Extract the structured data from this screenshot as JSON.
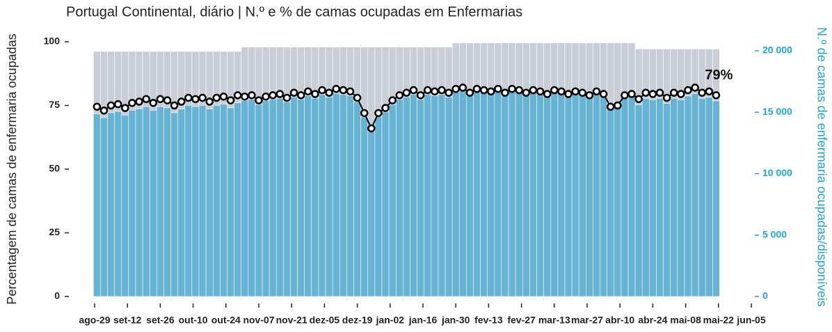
{
  "chart_data": {
    "type": "combo",
    "title": "Portugal Continental, diário | N.º e % de camas ocupadas em Enfermarias",
    "ylabel": "Percentagem de camas de enfermaria ocupadas",
    "y2label": "N.º de camas de enfermaria ocupadas/disponíveis",
    "annotation": "79%",
    "x": [
      1,
      4,
      7,
      10,
      13,
      16,
      19,
      22,
      25,
      28,
      31,
      34,
      37,
      40,
      43,
      46,
      49,
      52,
      55,
      58,
      61,
      64,
      67,
      70,
      73,
      76,
      79,
      82,
      85,
      88,
      91,
      94,
      97,
      100,
      103,
      106,
      109,
      112,
      115,
      118,
      121,
      124,
      127,
      130,
      133,
      136,
      139,
      142,
      145,
      148,
      151,
      154,
      157,
      160,
      163,
      166,
      169,
      172,
      175,
      178,
      181,
      184,
      187,
      190,
      193,
      196,
      199,
      202,
      205,
      208,
      211,
      214,
      217,
      220,
      223,
      226,
      229,
      232,
      235,
      238,
      241,
      244,
      247,
      250,
      253,
      256,
      259,
      262,
      265
    ],
    "series": [
      {
        "type": "bar",
        "axis": "y2",
        "color": "#c9ced6",
        "values": [
          19950,
          19950,
          19950,
          19950,
          19950,
          19950,
          19950,
          19950,
          19950,
          19950,
          19950,
          19950,
          19950,
          19950,
          19950,
          19950,
          19950,
          19950,
          19950,
          19950,
          19950,
          20300,
          20300,
          20300,
          20300,
          20300,
          20300,
          20300,
          20300,
          20300,
          20300,
          20300,
          20300,
          20300,
          20300,
          20300,
          20300,
          20300,
          20300,
          20300,
          20300,
          20300,
          20300,
          20300,
          20300,
          20300,
          20300,
          20300,
          20300,
          20300,
          20300,
          20650,
          20650,
          20650,
          20650,
          20650,
          20650,
          20650,
          20650,
          20650,
          20650,
          20650,
          20650,
          20650,
          20650,
          20650,
          20650,
          20650,
          20650,
          20650,
          20650,
          20650,
          20650,
          20650,
          20650,
          20650,
          20650,
          20150,
          20150,
          20150,
          20150,
          20150,
          20150,
          20150,
          20150,
          20150,
          20150,
          20150,
          20150
        ]
      },
      {
        "type": "bar",
        "axis": "y2",
        "color": "#66b3d4",
        "values": [
          14860,
          14560,
          14960,
          15060,
          14760,
          15160,
          15260,
          15460,
          15160,
          15460,
          15360,
          14960,
          15260,
          15560,
          15460,
          15560,
          15260,
          15560,
          15660,
          15360,
          15760,
          15940,
          16040,
          15630,
          15940,
          16040,
          16140,
          15830,
          16240,
          16040,
          16340,
          16140,
          16440,
          16240,
          16540,
          16440,
          16340,
          15830,
          14620,
          13400,
          14620,
          15020,
          15630,
          16040,
          16240,
          16440,
          16040,
          16440,
          16340,
          16440,
          16240,
          16830,
          16930,
          16520,
          16830,
          16730,
          16620,
          16830,
          16520,
          16830,
          16730,
          16520,
          16730,
          16620,
          16420,
          16730,
          16620,
          16420,
          16620,
          16520,
          16310,
          16620,
          16420,
          15380,
          15490,
          16310,
          16420,
          15620,
          16120,
          16020,
          16120,
          15720,
          16120,
          16020,
          16320,
          16520,
          16120,
          16220,
          15920
        ]
      },
      {
        "type": "line",
        "axis": "y",
        "color": "#000000",
        "values": [
          74.5,
          73,
          75,
          75.5,
          74,
          76,
          76.5,
          77.5,
          76,
          77.5,
          77,
          75,
          76.5,
          78,
          77.5,
          78,
          76.5,
          78,
          78.5,
          77,
          79,
          78.5,
          79,
          77,
          78.5,
          79,
          79.5,
          78,
          80,
          79,
          80.5,
          79.5,
          81,
          80,
          81.5,
          81,
          80.5,
          78,
          72,
          66,
          72,
          74,
          77,
          79,
          80,
          81,
          79,
          81,
          80.5,
          81,
          80,
          81.5,
          82,
          80,
          81.5,
          81,
          80.5,
          81.5,
          80,
          81.5,
          81,
          80,
          81,
          80.5,
          79.5,
          81,
          80.5,
          79.5,
          80.5,
          80,
          79,
          80.5,
          79.5,
          74.5,
          75,
          79,
          79.5,
          77.5,
          80,
          79.5,
          80,
          78,
          80,
          79.5,
          81,
          82,
          80,
          80.5,
          79
        ]
      }
    ],
    "xlim": [
      0,
      280
    ],
    "xticks": [
      {
        "value": 0,
        "label": "ago-29"
      },
      {
        "value": 14,
        "label": "set-12"
      },
      {
        "value": 28,
        "label": "set-26"
      },
      {
        "value": 42,
        "label": "out-10"
      },
      {
        "value": 56,
        "label": "out-24"
      },
      {
        "value": 70,
        "label": "nov-07"
      },
      {
        "value": 84,
        "label": "nov-21"
      },
      {
        "value": 98,
        "label": "dez-05"
      },
      {
        "value": 112,
        "label": "dez-19"
      },
      {
        "value": 126,
        "label": "jan-02"
      },
      {
        "value": 140,
        "label": "jan-16"
      },
      {
        "value": 154,
        "label": "jan-30"
      },
      {
        "value": 168,
        "label": "fev-13"
      },
      {
        "value": 182,
        "label": "fev-27"
      },
      {
        "value": 196,
        "label": "mar-13"
      },
      {
        "value": 210,
        "label": "mar-27"
      },
      {
        "value": 224,
        "label": "abr-10"
      },
      {
        "value": 238,
        "label": "abr-24"
      },
      {
        "value": 252,
        "label": "mai-08"
      },
      {
        "value": 266,
        "label": "mai-22"
      },
      {
        "value": 280,
        "label": "jun-05"
      }
    ],
    "ylim": [
      0,
      100
    ],
    "yticks": [
      0,
      25,
      50,
      75,
      100
    ],
    "y2lim": [
      0,
      20736
    ],
    "y2ticks": [
      0,
      {
        "value": 5000,
        "label": "5 000"
      },
      {
        "value": 10000,
        "label": "10 000"
      },
      {
        "value": 15000,
        "label": "15 000"
      },
      {
        "value": 20000,
        "label": "20 000"
      }
    ],
    "y2color": "#1ea5cf"
  }
}
